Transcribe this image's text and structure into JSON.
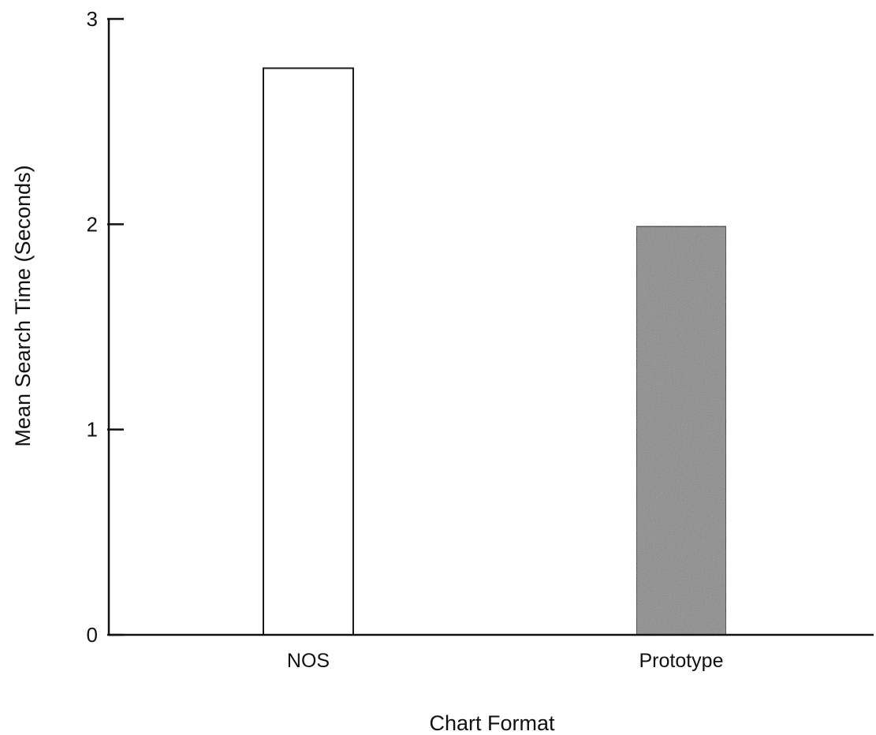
{
  "chart_data": {
    "type": "bar",
    "categories": [
      "NOS",
      "Prototype"
    ],
    "values": [
      2.76,
      1.99
    ],
    "xlabel": "Chart Format",
    "ylabel": "Mean Search Time (Seconds)",
    "ylim": [
      0,
      3
    ],
    "yticks": [
      "0",
      "1",
      "2",
      "3"
    ],
    "grid": false,
    "bar_colors": [
      "#ffffff",
      "#8a8a8a"
    ],
    "bar_edge_color": "#1a1a1a"
  }
}
